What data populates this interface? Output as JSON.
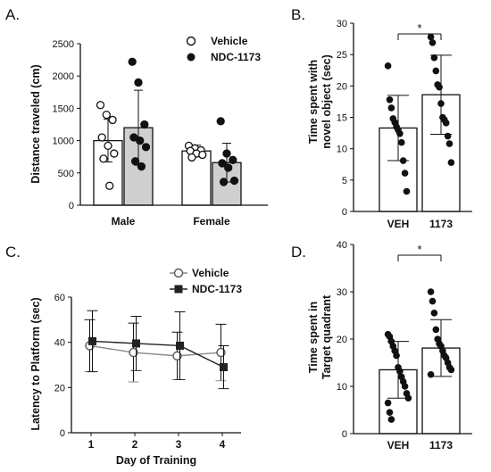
{
  "chart_data": [
    {
      "panel": "A.",
      "type": "bar",
      "ylabel": "Distance traveled (cm)",
      "ylim": [
        0,
        2500
      ],
      "yticks": [
        0,
        500,
        1000,
        1500,
        2000,
        2500
      ],
      "categories": [
        "Male",
        "Female"
      ],
      "series": [
        {
          "name": "Vehicle",
          "values": [
            1000,
            840
          ],
          "sd": [
            330,
            90
          ],
          "fill": "#ffffff",
          "points": [
            [
              1550,
              1400,
              1320,
              1050,
              920,
              800,
              720,
              300
            ],
            [
              920,
              880,
              850,
              840,
              800,
              780,
              740
            ]
          ]
        },
        {
          "name": "NDC-1173",
          "values": [
            1200,
            660
          ],
          "sd": [
            580,
            300
          ],
          "fill": "#cfcfcf",
          "points": [
            [
              2220,
              1900,
              1250,
              1050,
              1000,
              900,
              680,
              600
            ],
            [
              1300,
              800,
              700,
              650,
              580,
              380,
              360
            ]
          ]
        }
      ],
      "legend": "top-right"
    },
    {
      "panel": "B.",
      "type": "bar",
      "ylabel": "Time spent with novel object (sec)",
      "ylim": [
        0,
        30
      ],
      "yticks": [
        0,
        5,
        10,
        15,
        20,
        25,
        30
      ],
      "categories": [
        "VEH",
        "1173"
      ],
      "values": [
        13.3,
        18.6
      ],
      "sd": [
        5.2,
        6.3
      ],
      "points": [
        [
          23.2,
          17.8,
          16.5,
          14.8,
          14.2,
          13.5,
          13.0,
          12.4,
          11.0,
          8.1,
          6.1,
          3.2
        ],
        [
          27.8,
          26.9,
          24.5,
          22.4,
          20.2,
          19.8,
          17.2,
          15.0,
          14.6,
          14.1,
          12.0,
          10.8,
          7.8
        ]
      ],
      "significance": "*"
    },
    {
      "panel": "C.",
      "type": "line",
      "xlabel": "Day of Training",
      "ylabel": "Latency to Platform (sec)",
      "ylim": [
        0,
        60
      ],
      "yticks": [
        0,
        20,
        40,
        60
      ],
      "x": [
        1,
        2,
        3,
        4
      ],
      "series": [
        {
          "name": "Vehicle",
          "values": [
            38.5,
            35.5,
            34.0,
            35.5
          ],
          "sd": [
            11.5,
            13.0,
            10.5,
            12.5
          ],
          "marker": "open-circle",
          "color": "#8a8a8a"
        },
        {
          "name": "NDC-1173",
          "values": [
            40.5,
            39.5,
            38.5,
            29.0
          ],
          "sd": [
            13.5,
            12.0,
            15.0,
            9.5
          ],
          "marker": "filled-square",
          "color": "#222222"
        }
      ],
      "legend": "top-right"
    },
    {
      "panel": "D.",
      "type": "bar",
      "ylabel": "Time spent in Target quadrant",
      "ylim": [
        0,
        40
      ],
      "yticks": [
        0,
        10,
        20,
        30,
        40
      ],
      "categories": [
        "VEH",
        "1173"
      ],
      "values": [
        13.5,
        18.1
      ],
      "sd": [
        6.0,
        6.0
      ],
      "points": [
        [
          21.0,
          20.5,
          19.5,
          18.5,
          17.5,
          16.5,
          14.0,
          13.2,
          12.0,
          11.0,
          10.0,
          8.5,
          7.5,
          6.5,
          4.5,
          3.0
        ],
        [
          30.0,
          28.0,
          25.5,
          22.0,
          20.0,
          19.0,
          18.5,
          17.5,
          16.5,
          16.0,
          15.0,
          14.0,
          13.5,
          12.5
        ]
      ],
      "significance": "*"
    }
  ]
}
